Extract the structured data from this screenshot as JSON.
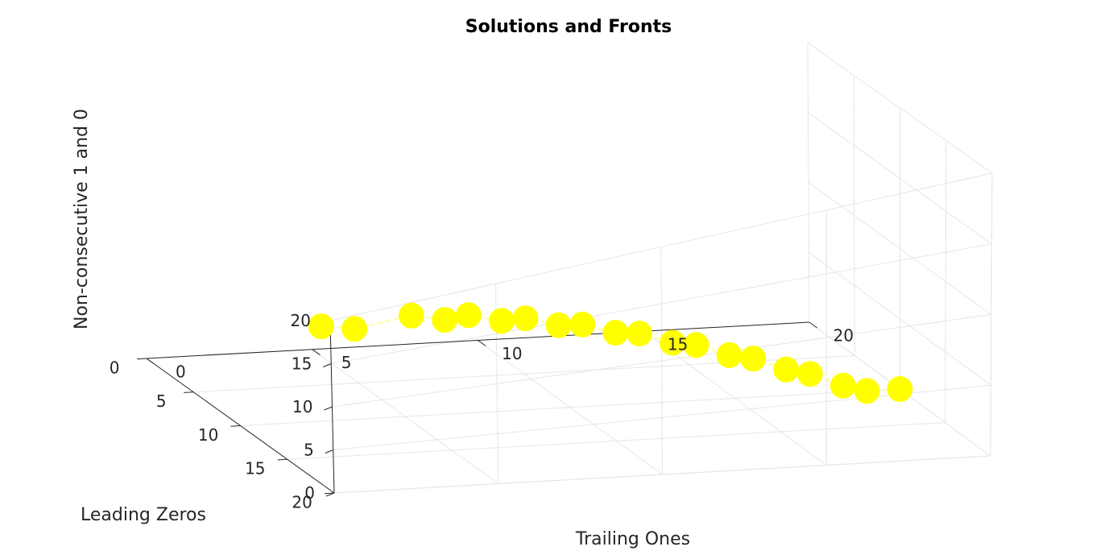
{
  "chart_data": {
    "type": "scatter",
    "title": "Solutions and Fronts",
    "xlabel": "Trailing Ones",
    "ylabel": "Leading Zeros",
    "zlabel": "Non-consecutive 1 and 0",
    "xlim": [
      0,
      20
    ],
    "ylim": [
      0,
      20
    ],
    "zlim": [
      0,
      20
    ],
    "xticks": [
      "0",
      "5",
      "10",
      "15",
      "20"
    ],
    "yticks": [
      "0",
      "5",
      "10",
      "15",
      "20"
    ],
    "zticks": [
      "0",
      "5",
      "10",
      "15",
      "20"
    ],
    "grid": true,
    "marker_color": "#ffff00",
    "line_color": "#ffff00",
    "series": [
      {
        "points": [
          [
            0,
            19,
            18
          ],
          [
            1,
            19,
            17
          ],
          [
            3,
            18,
            16
          ],
          [
            4,
            18,
            15
          ],
          [
            5,
            17,
            14
          ],
          [
            6,
            17,
            13
          ],
          [
            7,
            16,
            12
          ],
          [
            8,
            16,
            11
          ],
          [
            9,
            15,
            10
          ],
          [
            10,
            15,
            9
          ],
          [
            11,
            14,
            8
          ],
          [
            12,
            14,
            7
          ],
          [
            13,
            13,
            6
          ],
          [
            14,
            13,
            5
          ],
          [
            15,
            12,
            4
          ],
          [
            16,
            12,
            3
          ],
          [
            17,
            11,
            2
          ],
          [
            18,
            11,
            1
          ],
          [
            19,
            10,
            0
          ],
          [
            20,
            10,
            0
          ]
        ]
      }
    ]
  }
}
